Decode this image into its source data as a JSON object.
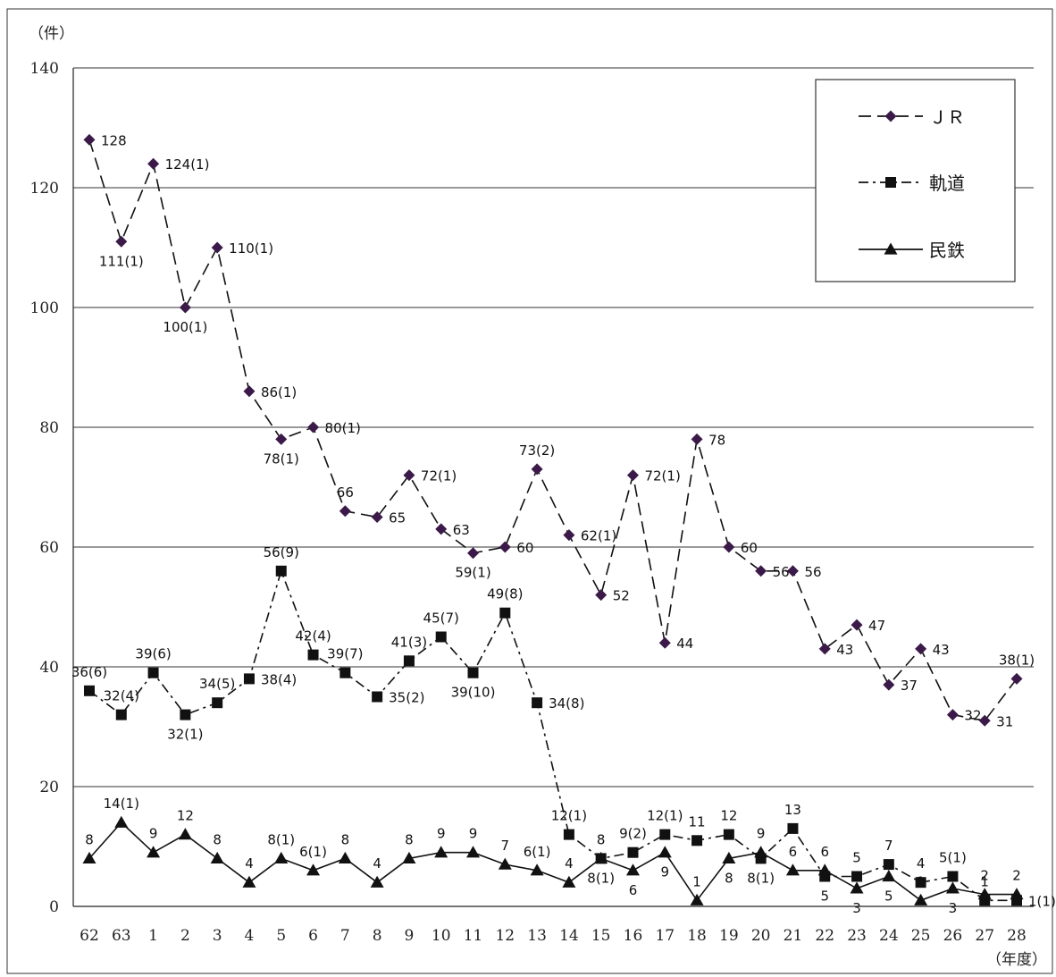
{
  "chart_data": {
    "type": "line",
    "y_unit": "（件）",
    "x_unit": "（年度）",
    "ylim": [
      0,
      140
    ],
    "yticks": [
      0,
      20,
      40,
      60,
      80,
      100,
      120,
      140
    ],
    "grid": "horizontal",
    "legend_position": "top-right",
    "categories": [
      "62",
      "63",
      "1",
      "2",
      "3",
      "4",
      "5",
      "6",
      "7",
      "8",
      "9",
      "10",
      "11",
      "12",
      "13",
      "14",
      "15",
      "16",
      "17",
      "18",
      "19",
      "20",
      "21",
      "22",
      "23",
      "24",
      "25",
      "26",
      "27",
      "28"
    ],
    "series": [
      {
        "name": "ＪＲ",
        "marker": "diamond",
        "line": "dashed",
        "color": "#3b1a4a",
        "values": [
          128,
          111,
          124,
          100,
          110,
          86,
          78,
          80,
          66,
          65,
          72,
          63,
          59,
          60,
          73,
          62,
          52,
          72,
          44,
          78,
          60,
          56,
          56,
          43,
          47,
          37,
          43,
          32,
          31,
          38
        ],
        "labels": [
          "128",
          "111(1)",
          "124(1)",
          "100(1)",
          "110(1)",
          "86(1)",
          "78(1)",
          "80(1)",
          "66",
          "65",
          "72(1)",
          "63",
          "59(1)",
          "60",
          "73(2)",
          "62(1)",
          "52",
          "72(1)",
          "44",
          "78",
          "60",
          "56",
          "56",
          "43",
          "47",
          "37",
          "43",
          "32",
          "31",
          "38(1)"
        ]
      },
      {
        "name": "軌道",
        "marker": "square",
        "line": "dashdot",
        "color": "#111111",
        "values": [
          36,
          32,
          39,
          32,
          34,
          38,
          56,
          42,
          39,
          35,
          41,
          45,
          39,
          49,
          34,
          12,
          8,
          9,
          12,
          11,
          12,
          8,
          13,
          5,
          5,
          7,
          4,
          5,
          1,
          1
        ],
        "labels": [
          "36(6)",
          "32(4)",
          "39(6)",
          "32(1)",
          "34(5)",
          "38(4)",
          "56(9)",
          "42(4)",
          "39(7)",
          "35(2)",
          "41(3)",
          "45(7)",
          "39(10)",
          "49(8)",
          "34(8)",
          "12(1)",
          "8(1)",
          "9(2)",
          "12(1)",
          "11",
          "12",
          "8(1)",
          "13",
          "5",
          "5",
          "7",
          "4",
          "5(1)",
          "1",
          "1(1)"
        ]
      },
      {
        "name": "民鉄",
        "marker": "triangle",
        "line": "solid",
        "color": "#111111",
        "values": [
          8,
          14,
          9,
          12,
          8,
          4,
          8,
          6,
          8,
          4,
          8,
          9,
          9,
          7,
          6,
          4,
          8,
          6,
          9,
          1,
          8,
          9,
          6,
          6,
          3,
          5,
          1,
          3,
          2,
          2
        ],
        "labels": [
          "8",
          "14(1)",
          "9",
          "12",
          "8",
          "4",
          "8(1)",
          "6(1)",
          "8",
          "4",
          "8",
          "9",
          "9",
          "7",
          "6(1)",
          "4",
          "8",
          "6",
          "9",
          "1",
          "8",
          "9",
          "6",
          "6",
          "3",
          "5",
          "1",
          "3",
          "2",
          "2"
        ]
      }
    ]
  }
}
